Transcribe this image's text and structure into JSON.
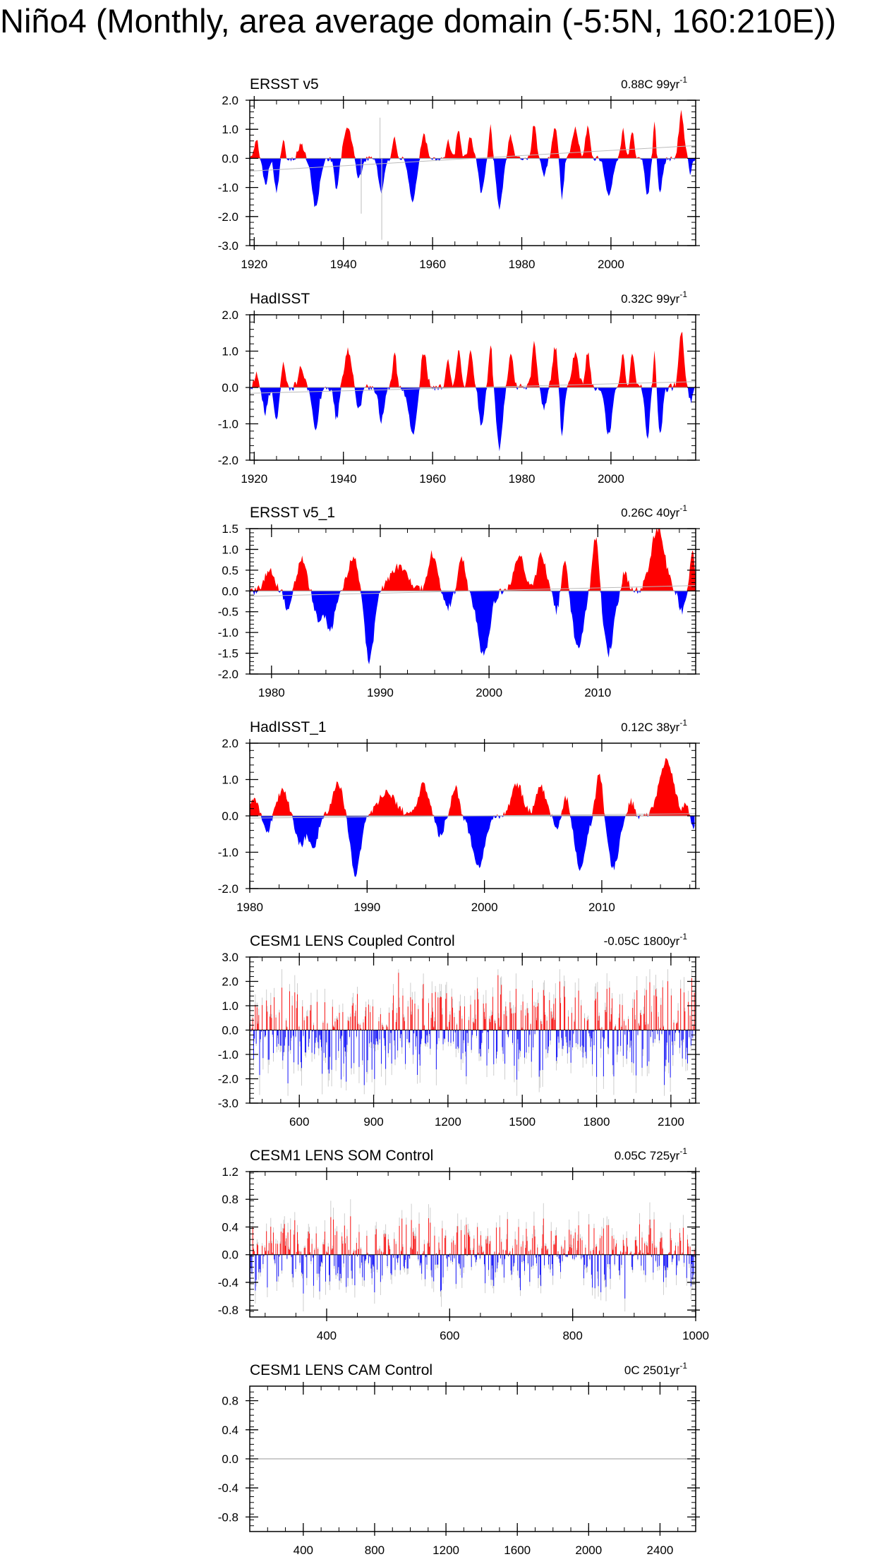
{
  "title": "Niño4 (Monthly, area average domain (-5:5N, 160:210E))",
  "colors": {
    "positive": "#ff0000",
    "negative": "#0000ff",
    "frame": "#000000",
    "zero_line": "#999999",
    "spike": "#c8c8c8"
  },
  "chart_data": [
    {
      "type": "area",
      "title": "ERSST v5",
      "annotation": "0.88C 99yr",
      "annotation_sup": "-1",
      "xlim": [
        1919,
        2019
      ],
      "ylim": [
        -3.0,
        2.0
      ],
      "yticks": [
        2.0,
        1.0,
        0.0,
        -1.0,
        -2.0,
        -3.0
      ],
      "ytick_labels": [
        "2.0",
        "1.0",
        "0.0",
        "-1.0",
        "-2.0",
        "-3.0"
      ],
      "xticks": [
        1920,
        1940,
        1960,
        1980,
        2000
      ],
      "xtick_labels": [
        "1920",
        "1940",
        "1960",
        "1980",
        "2000"
      ],
      "trend_line": [
        [
          1919,
          -0.44
        ],
        [
          2019,
          0.44
        ]
      ],
      "events": [
        {
          "t": 1920.5,
          "v": 0.6,
          "w": 1.2
        },
        {
          "t": 1922.5,
          "v": -0.9,
          "w": 1.3
        },
        {
          "t": 1925.0,
          "v": -1.1,
          "w": 1.2
        },
        {
          "t": 1926.5,
          "v": 0.6,
          "w": 0.9
        },
        {
          "t": 1930.5,
          "v": 0.5,
          "w": 1.5
        },
        {
          "t": 1933.8,
          "v": -1.7,
          "w": 2.0
        },
        {
          "t": 1938.5,
          "v": -1.1,
          "w": 1.2
        },
        {
          "t": 1941.0,
          "v": 1.1,
          "w": 2.0
        },
        {
          "t": 1943.5,
          "v": -0.7,
          "w": 1.5
        },
        {
          "t": 1948.5,
          "v": -1.2,
          "w": 1.4
        },
        {
          "t": 1951.5,
          "v": 0.7,
          "w": 1.0
        },
        {
          "t": 1955.5,
          "v": -1.5,
          "w": 2.0
        },
        {
          "t": 1958.0,
          "v": 0.9,
          "w": 1.5
        },
        {
          "t": 1963.5,
          "v": 0.6,
          "w": 1.0
        },
        {
          "t": 1965.8,
          "v": 0.9,
          "w": 1.2
        },
        {
          "t": 1968.5,
          "v": 0.8,
          "w": 1.2
        },
        {
          "t": 1971.0,
          "v": -1.2,
          "w": 1.4
        },
        {
          "t": 1973.0,
          "v": 1.1,
          "w": 1.0
        },
        {
          "t": 1975.0,
          "v": -1.7,
          "w": 1.6
        },
        {
          "t": 1977.5,
          "v": 0.8,
          "w": 1.2
        },
        {
          "t": 1982.8,
          "v": 1.2,
          "w": 1.2
        },
        {
          "t": 1985.0,
          "v": -0.6,
          "w": 1.2
        },
        {
          "t": 1987.5,
          "v": 1.0,
          "w": 1.5
        },
        {
          "t": 1989.0,
          "v": -1.4,
          "w": 1.0
        },
        {
          "t": 1992.0,
          "v": 1.1,
          "w": 1.5
        },
        {
          "t": 1994.8,
          "v": 1.1,
          "w": 1.2
        },
        {
          "t": 1999.5,
          "v": -1.3,
          "w": 1.8
        },
        {
          "t": 2002.7,
          "v": 1.0,
          "w": 1.0
        },
        {
          "t": 2004.8,
          "v": 1.0,
          "w": 1.0
        },
        {
          "t": 2008.2,
          "v": -1.3,
          "w": 1.2
        },
        {
          "t": 2009.8,
          "v": 1.3,
          "w": 0.9
        },
        {
          "t": 2011.0,
          "v": -1.1,
          "w": 1.4
        },
        {
          "t": 2015.8,
          "v": 1.6,
          "w": 1.4
        },
        {
          "t": 2017.8,
          "v": -0.6,
          "w": 0.8
        }
      ],
      "spikes": [
        [
          1948.6,
          -2.8
        ],
        [
          1948.2,
          1.4
        ],
        [
          1944.0,
          -1.9
        ]
      ]
    },
    {
      "type": "area",
      "title": "HadISST",
      "annotation": "0.32C 99yr",
      "annotation_sup": "-1",
      "xlim": [
        1919,
        2019
      ],
      "ylim": [
        -2.0,
        2.0
      ],
      "yticks": [
        2.0,
        1.0,
        0.0,
        -1.0,
        -2.0
      ],
      "ytick_labels": [
        "2.0",
        "1.0",
        "0.0",
        "-1.0",
        "-2.0"
      ],
      "xticks": [
        1920,
        1940,
        1960,
        1980,
        2000
      ],
      "xtick_labels": [
        "1920",
        "1940",
        "1960",
        "1980",
        "2000"
      ],
      "trend_line": [
        [
          1919,
          -0.16
        ],
        [
          2019,
          0.16
        ]
      ],
      "events": [
        {
          "t": 1920.5,
          "v": 0.4,
          "w": 1.2
        },
        {
          "t": 1922.5,
          "v": -0.7,
          "w": 1.3
        },
        {
          "t": 1925.0,
          "v": -0.9,
          "w": 1.2
        },
        {
          "t": 1926.5,
          "v": 0.7,
          "w": 0.9
        },
        {
          "t": 1930.5,
          "v": 0.6,
          "w": 1.5
        },
        {
          "t": 1933.8,
          "v": -1.1,
          "w": 1.6
        },
        {
          "t": 1938.5,
          "v": -0.9,
          "w": 1.2
        },
        {
          "t": 1941.0,
          "v": 1.0,
          "w": 2.0
        },
        {
          "t": 1943.5,
          "v": -0.6,
          "w": 1.5
        },
        {
          "t": 1948.5,
          "v": -0.9,
          "w": 1.4
        },
        {
          "t": 1951.5,
          "v": 0.9,
          "w": 1.0
        },
        {
          "t": 1955.5,
          "v": -1.3,
          "w": 2.0
        },
        {
          "t": 1958.0,
          "v": 1.0,
          "w": 1.5
        },
        {
          "t": 1963.5,
          "v": 0.8,
          "w": 1.0
        },
        {
          "t": 1965.8,
          "v": 1.0,
          "w": 1.2
        },
        {
          "t": 1968.5,
          "v": 1.0,
          "w": 1.2
        },
        {
          "t": 1971.0,
          "v": -1.1,
          "w": 1.4
        },
        {
          "t": 1973.0,
          "v": 1.2,
          "w": 1.0
        },
        {
          "t": 1975.0,
          "v": -1.7,
          "w": 1.6
        },
        {
          "t": 1977.5,
          "v": 1.0,
          "w": 1.2
        },
        {
          "t": 1982.8,
          "v": 1.2,
          "w": 1.2
        },
        {
          "t": 1985.0,
          "v": -0.6,
          "w": 1.2
        },
        {
          "t": 1987.5,
          "v": 1.1,
          "w": 1.5
        },
        {
          "t": 1989.0,
          "v": -1.5,
          "w": 1.0
        },
        {
          "t": 1992.0,
          "v": 1.0,
          "w": 1.5
        },
        {
          "t": 1994.8,
          "v": 1.0,
          "w": 1.2
        },
        {
          "t": 1999.5,
          "v": -1.3,
          "w": 1.8
        },
        {
          "t": 2002.7,
          "v": 1.0,
          "w": 1.0
        },
        {
          "t": 2004.8,
          "v": 1.0,
          "w": 1.0
        },
        {
          "t": 2008.2,
          "v": -1.4,
          "w": 1.2
        },
        {
          "t": 2009.8,
          "v": 1.1,
          "w": 0.9
        },
        {
          "t": 2011.0,
          "v": -1.3,
          "w": 1.4
        },
        {
          "t": 2015.8,
          "v": 1.6,
          "w": 1.4
        },
        {
          "t": 2017.8,
          "v": -0.4,
          "w": 0.8
        }
      ],
      "spikes": []
    },
    {
      "type": "area",
      "title": "ERSST v5_1",
      "annotation": "0.26C 40yr",
      "annotation_sup": "-1",
      "xlim": [
        1978,
        2019
      ],
      "ylim": [
        -2.0,
        1.5
      ],
      "yticks": [
        1.5,
        1.0,
        0.5,
        0.0,
        -0.5,
        -1.0,
        -1.5,
        -2.0
      ],
      "ytick_labels": [
        "1.5",
        "1.0",
        "0.5",
        "0.0",
        "-0.5",
        "-1.0",
        "-1.5",
        "-2.0"
      ],
      "xticks": [
        1980,
        1990,
        2000,
        2010
      ],
      "xtick_labels": [
        "1980",
        "1990",
        "2000",
        "2010"
      ],
      "trend_line": [
        [
          1978,
          -0.13
        ],
        [
          2019,
          0.13
        ]
      ],
      "events": [
        {
          "t": 1979.8,
          "v": 0.55,
          "w": 1.0
        },
        {
          "t": 1981.5,
          "v": -0.5,
          "w": 0.6
        },
        {
          "t": 1982.8,
          "v": 0.75,
          "w": 1.0
        },
        {
          "t": 1984.3,
          "v": -0.7,
          "w": 0.9
        },
        {
          "t": 1985.4,
          "v": -0.95,
          "w": 0.9
        },
        {
          "t": 1987.5,
          "v": 0.85,
          "w": 1.1
        },
        {
          "t": 1989.0,
          "v": -1.7,
          "w": 1.0
        },
        {
          "t": 1991.7,
          "v": 0.6,
          "w": 1.8
        },
        {
          "t": 1994.8,
          "v": 0.9,
          "w": 1.0
        },
        {
          "t": 1996.2,
          "v": -0.4,
          "w": 0.8
        },
        {
          "t": 1997.5,
          "v": 0.8,
          "w": 0.7
        },
        {
          "t": 1999.5,
          "v": -1.55,
          "w": 1.3
        },
        {
          "t": 2002.8,
          "v": 0.85,
          "w": 1.2
        },
        {
          "t": 2004.8,
          "v": 0.9,
          "w": 0.9
        },
        {
          "t": 2006.2,
          "v": -0.5,
          "w": 0.5
        },
        {
          "t": 2007.0,
          "v": 0.7,
          "w": 0.6
        },
        {
          "t": 2008.2,
          "v": -1.4,
          "w": 1.1
        },
        {
          "t": 2009.8,
          "v": 1.3,
          "w": 0.7
        },
        {
          "t": 2011.0,
          "v": -1.5,
          "w": 1.1
        },
        {
          "t": 2012.5,
          "v": 0.5,
          "w": 0.6
        },
        {
          "t": 2015.5,
          "v": 1.5,
          "w": 1.5
        },
        {
          "t": 2017.7,
          "v": -0.5,
          "w": 0.6
        },
        {
          "t": 2018.7,
          "v": 1.0,
          "w": 0.5
        }
      ],
      "spikes": []
    },
    {
      "type": "area",
      "title": "HadISST_1",
      "annotation": "0.12C 38yr",
      "annotation_sup": "-1",
      "xlim": [
        1980,
        2018
      ],
      "ylim": [
        -2.0,
        2.0
      ],
      "yticks": [
        2.0,
        1.0,
        0.0,
        -1.0,
        -2.0
      ],
      "ytick_labels": [
        "2.0",
        "1.0",
        "0.0",
        "-1.0",
        "-2.0"
      ],
      "xticks": [
        1980,
        1990,
        2000,
        2010
      ],
      "xtick_labels": [
        "1980",
        "1990",
        "2000",
        "2010"
      ],
      "trend_line": [
        [
          1980,
          -0.06
        ],
        [
          2018,
          0.06
        ]
      ],
      "events": [
        {
          "t": 1980.3,
          "v": 0.5,
          "w": 0.8
        },
        {
          "t": 1981.5,
          "v": -0.5,
          "w": 0.6
        },
        {
          "t": 1982.8,
          "v": 0.75,
          "w": 1.0
        },
        {
          "t": 1984.3,
          "v": -0.8,
          "w": 0.9
        },
        {
          "t": 1985.4,
          "v": -0.95,
          "w": 0.9
        },
        {
          "t": 1987.5,
          "v": 0.9,
          "w": 1.1
        },
        {
          "t": 1989.0,
          "v": -1.65,
          "w": 1.0
        },
        {
          "t": 1991.7,
          "v": 0.65,
          "w": 1.8
        },
        {
          "t": 1994.8,
          "v": 0.9,
          "w": 1.0
        },
        {
          "t": 1996.2,
          "v": -0.55,
          "w": 0.8
        },
        {
          "t": 1997.5,
          "v": 0.8,
          "w": 0.7
        },
        {
          "t": 1999.5,
          "v": -1.4,
          "w": 1.3
        },
        {
          "t": 2002.8,
          "v": 0.85,
          "w": 1.2
        },
        {
          "t": 2004.8,
          "v": 0.85,
          "w": 0.9
        },
        {
          "t": 2006.2,
          "v": -0.4,
          "w": 0.5
        },
        {
          "t": 2007.0,
          "v": 0.55,
          "w": 0.6
        },
        {
          "t": 2008.2,
          "v": -1.45,
          "w": 1.1
        },
        {
          "t": 2009.8,
          "v": 1.25,
          "w": 0.7
        },
        {
          "t": 2011.0,
          "v": -1.45,
          "w": 1.1
        },
        {
          "t": 2012.5,
          "v": 0.4,
          "w": 0.6
        },
        {
          "t": 2015.5,
          "v": 1.5,
          "w": 1.5
        },
        {
          "t": 2017.2,
          "v": 0.3,
          "w": 0.4
        },
        {
          "t": 2017.8,
          "v": -0.3,
          "w": 0.4
        }
      ],
      "spikes": []
    },
    {
      "type": "noise",
      "title": "CESM1 LENS Coupled Control",
      "annotation": "-0.05C 1800yr",
      "annotation_sup": "-1",
      "xlim": [
        400,
        2200
      ],
      "ylim": [
        -3.0,
        3.0
      ],
      "yticks": [
        3.0,
        2.0,
        1.0,
        0.0,
        -1.0,
        -2.0,
        -3.0
      ],
      "ytick_labels": [
        "3.0",
        "2.0",
        "1.0",
        "0.0",
        "-1.0",
        "-2.0",
        "-3.0"
      ],
      "xticks": [
        600,
        900,
        1200,
        1500,
        1800,
        2100
      ],
      "xtick_labels": [
        "600",
        "900",
        "1200",
        "1500",
        "1800",
        "2100"
      ],
      "amplitude": 1.3,
      "max_pos": 2.5,
      "min_neg": -2.7,
      "seed": 11
    },
    {
      "type": "noise",
      "title": "CESM1 LENS SOM Control",
      "annotation": "0.05C 725yr",
      "annotation_sup": "-1",
      "xlim": [
        275,
        1000
      ],
      "ylim": [
        -0.9,
        1.2
      ],
      "yticks": [
        1.2,
        0.8,
        0.4,
        0.0,
        -0.4,
        -0.8
      ],
      "ytick_labels": [
        "1.2",
        "0.8",
        "0.4",
        "0.0",
        "-0.4",
        "-0.8"
      ],
      "xticks": [
        400,
        600,
        800,
        1000
      ],
      "xtick_labels": [
        "400",
        "600",
        "800",
        "1000"
      ],
      "amplitude": 0.35,
      "max_pos": 0.9,
      "min_neg": -0.82,
      "seed": 29
    },
    {
      "type": "empty",
      "title": "CESM1 LENS CAM Control",
      "annotation": "0C 2501yr",
      "annotation_sup": "-1",
      "xlim": [
        100,
        2600
      ],
      "ylim": [
        -1.0,
        1.0
      ],
      "yticks": [
        0.8,
        0.4,
        0.0,
        -0.4,
        -0.8
      ],
      "ytick_labels": [
        "0.8",
        "0.4",
        "0.0",
        "-0.4",
        "-0.8"
      ],
      "xticks": [
        400,
        800,
        1200,
        1600,
        2000,
        2400
      ],
      "xtick_labels": [
        "400",
        "800",
        "1200",
        "1600",
        "2000",
        "2400"
      ]
    }
  ]
}
